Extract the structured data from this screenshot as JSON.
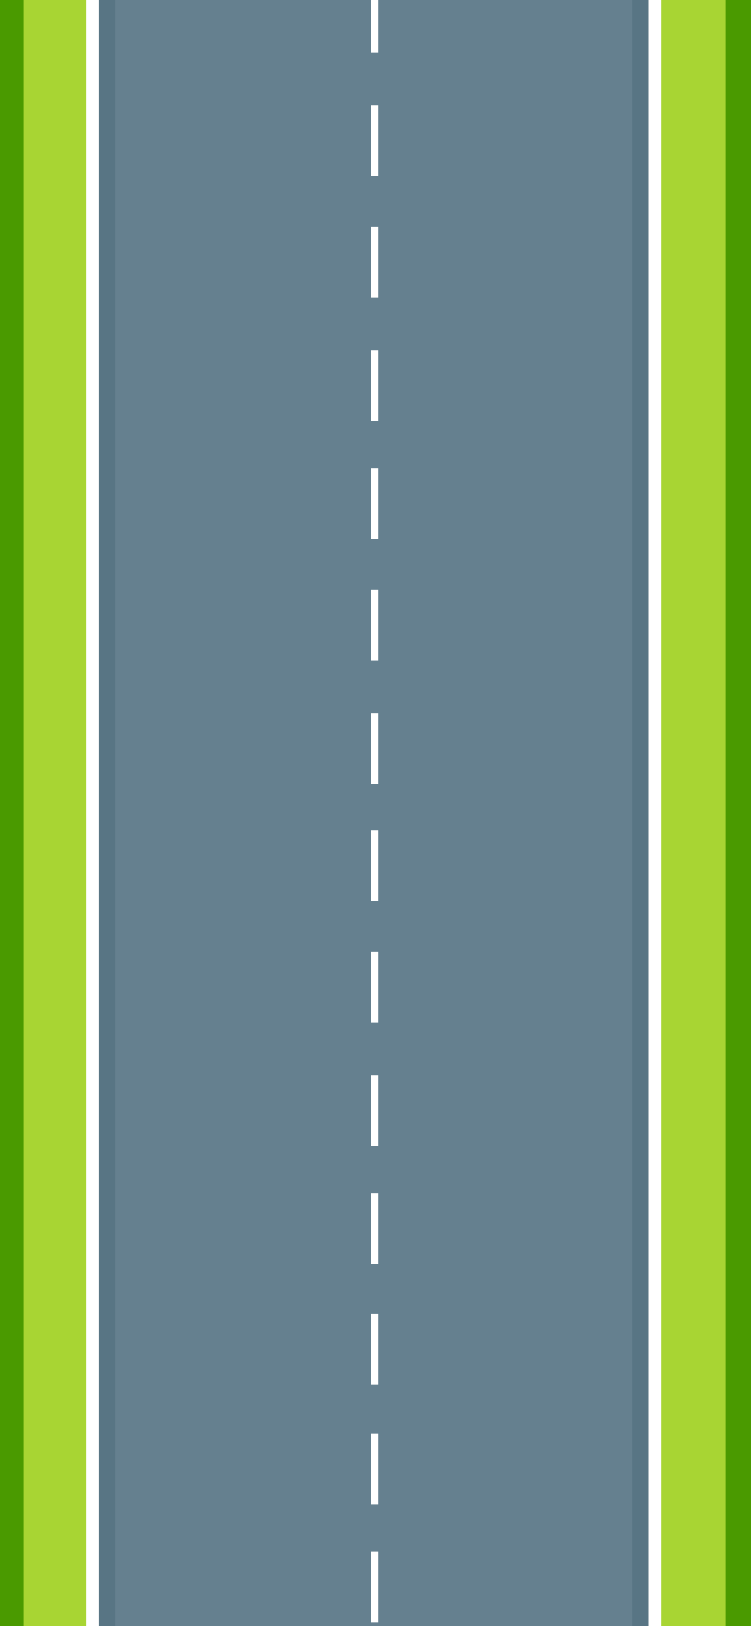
{
  "scene": {
    "type": "top-down two-lane road",
    "colors": {
      "grass_outer": "#4a9a00",
      "grass_inner": "#a8d533",
      "edge_line": "#ffffff",
      "shoulder": "#587584",
      "asphalt": "#65808f",
      "center_dash": "#ffffff"
    },
    "center_dash_count": 14
  }
}
